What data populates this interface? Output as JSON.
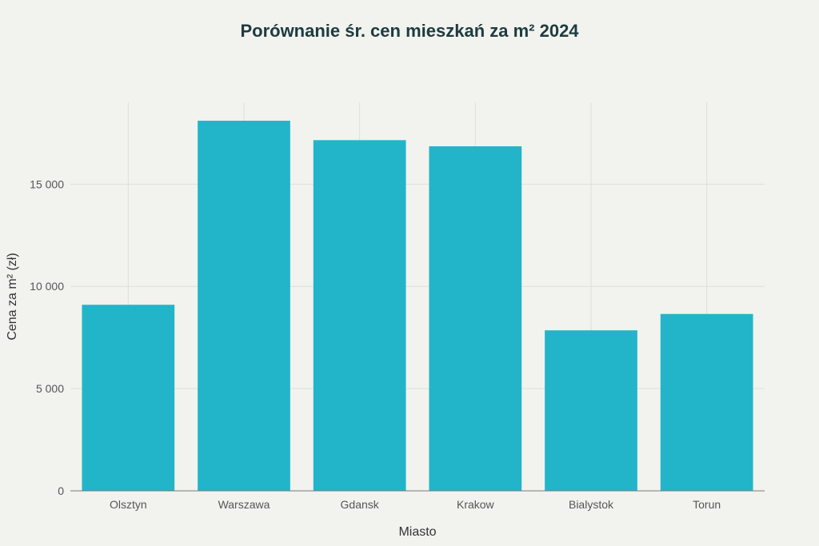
{
  "chart_data": {
    "type": "bar",
    "title": "Porównanie śr. cen mieszkań za m² 2024",
    "xlabel": "Miasto",
    "ylabel": "Cena za m² (zł)",
    "categories": [
      "Olsztyn",
      "Warszawa",
      "Gdansk",
      "Krakow",
      "Bialystok",
      "Torun"
    ],
    "values": [
      9100,
      18100,
      17150,
      16850,
      7850,
      8650
    ],
    "ylim": [
      0,
      19000
    ],
    "yticks": [
      0,
      5000,
      10000,
      15000
    ],
    "ytick_labels": [
      "0",
      "5 000",
      "10 000",
      "15 000"
    ],
    "grid": true,
    "colors": {
      "bar": "#22b5c9",
      "grid": "#dcdfd9",
      "axis": "#7a7a7a",
      "background": "#f2f3ee"
    }
  }
}
